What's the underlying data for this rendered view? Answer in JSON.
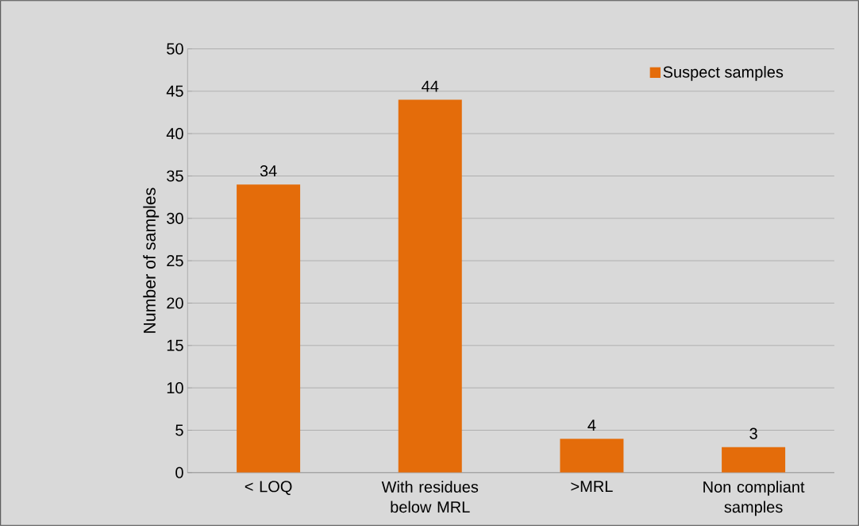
{
  "chart_data": {
    "type": "bar",
    "ylabel": "Number of samples",
    "categories": [
      "< LOQ",
      "With residues below MRL",
      ">MRL",
      "Non compliant samples"
    ],
    "series": [
      {
        "name": "Suspect samples",
        "color": "#e46c0a",
        "values": [
          34,
          44,
          4,
          3
        ]
      }
    ],
    "ylim": [
      0,
      50
    ],
    "yticks": [
      0,
      5,
      10,
      15,
      20,
      25,
      30,
      35,
      40,
      45,
      50
    ],
    "grid": "y",
    "legend": "top right",
    "data_labels": true
  }
}
